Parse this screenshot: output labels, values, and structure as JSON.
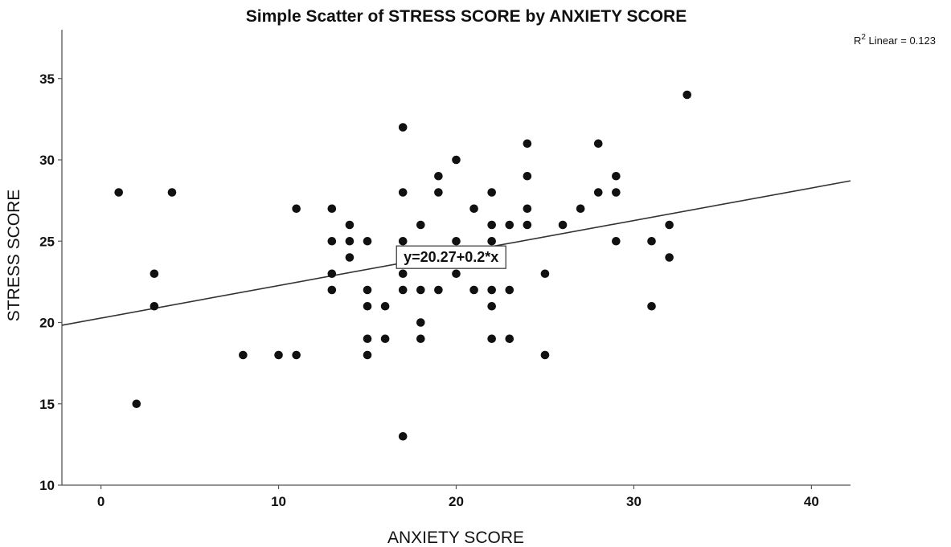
{
  "chart_data": {
    "type": "scatter",
    "title": "Simple Scatter of STRESS SCORE by ANXIETY SCORE",
    "xlabel": "ANXIETY SCORE",
    "ylabel": "STRESS SCORE",
    "xlim": [
      -2.2,
      42.2
    ],
    "ylim": [
      10,
      38
    ],
    "xticks": [
      0,
      10,
      20,
      30,
      40
    ],
    "yticks": [
      10,
      15,
      20,
      25,
      30,
      35
    ],
    "grid": false,
    "fit_line": {
      "intercept": 20.27,
      "slope": 0.2
    },
    "r2_prefix": "R",
    "r2_sup": "2",
    "r2_text": " Linear = 0.123",
    "equation_label": "y=20.27+0.2*x",
    "equation_at_x": 17,
    "points": [
      [
        1,
        28
      ],
      [
        2,
        15
      ],
      [
        3,
        23
      ],
      [
        3,
        21
      ],
      [
        4,
        28
      ],
      [
        8,
        18
      ],
      [
        10,
        18
      ],
      [
        11,
        27
      ],
      [
        11,
        18
      ],
      [
        13,
        27
      ],
      [
        13,
        25
      ],
      [
        13,
        23
      ],
      [
        13,
        22
      ],
      [
        14,
        26
      ],
      [
        14,
        25
      ],
      [
        14,
        24
      ],
      [
        15,
        25
      ],
      [
        15,
        22
      ],
      [
        15,
        21
      ],
      [
        15,
        19
      ],
      [
        15,
        18
      ],
      [
        16,
        21
      ],
      [
        16,
        19
      ],
      [
        17,
        32
      ],
      [
        17,
        28
      ],
      [
        17,
        25
      ],
      [
        17,
        23
      ],
      [
        17,
        22
      ],
      [
        17,
        13
      ],
      [
        18,
        26
      ],
      [
        18,
        22
      ],
      [
        18,
        20
      ],
      [
        18,
        19
      ],
      [
        19,
        29
      ],
      [
        19,
        28
      ],
      [
        19,
        22
      ],
      [
        20,
        30
      ],
      [
        20,
        25
      ],
      [
        20,
        23
      ],
      [
        21,
        27
      ],
      [
        21,
        22
      ],
      [
        22,
        28
      ],
      [
        22,
        26
      ],
      [
        22,
        25
      ],
      [
        22,
        22
      ],
      [
        22,
        21
      ],
      [
        22,
        19
      ],
      [
        23,
        26
      ],
      [
        23,
        22
      ],
      [
        23,
        19
      ],
      [
        24,
        31
      ],
      [
        24,
        29
      ],
      [
        24,
        27
      ],
      [
        24,
        26
      ],
      [
        25,
        23
      ],
      [
        25,
        18
      ],
      [
        26,
        26
      ],
      [
        27,
        27
      ],
      [
        28,
        31
      ],
      [
        28,
        28
      ],
      [
        29,
        29
      ],
      [
        29,
        28
      ],
      [
        29,
        25
      ],
      [
        31,
        25
      ],
      [
        31,
        21
      ],
      [
        32,
        26
      ],
      [
        32,
        24
      ],
      [
        33,
        34
      ]
    ]
  }
}
